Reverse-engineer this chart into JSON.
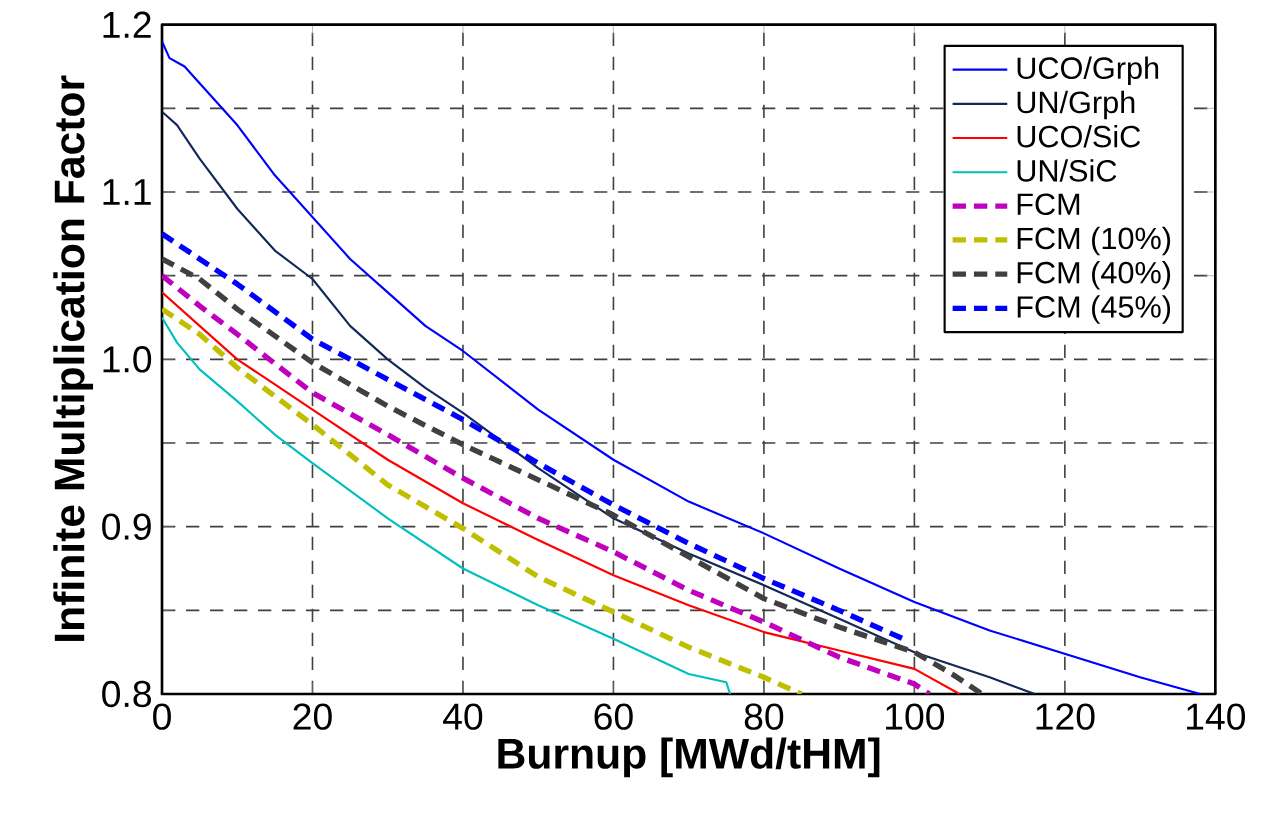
{
  "chart_data": {
    "type": "line",
    "xlabel": "Burnup [MWd/tHM]",
    "ylabel": "Infinite Multiplication Factor",
    "xlim": [
      0,
      140
    ],
    "ylim": [
      0.8,
      1.2
    ],
    "xticks": [
      0,
      20,
      40,
      60,
      80,
      100,
      120,
      140
    ],
    "yticks": [
      0.8,
      {
        "value": 0.85,
        "label": null
      },
      0.9,
      {
        "value": 0.95,
        "label": null
      },
      {
        "value": 1.0,
        "label": "1.0"
      },
      {
        "value": 1.05,
        "label": null
      },
      1.1,
      {
        "value": 1.15,
        "label": null
      },
      1.2
    ],
    "grid": true,
    "legend": "top right",
    "marker": "none",
    "series": [
      {
        "name": "UCO/Grph",
        "color": "#0000ff",
        "line_style": "solid",
        "x": [
          0,
          1,
          3,
          5,
          10,
          15,
          20,
          25,
          30,
          35,
          40,
          50,
          60,
          70,
          80,
          90,
          100,
          110,
          120,
          130,
          138
        ],
        "values": [
          1.19,
          1.18,
          1.175,
          1.165,
          1.14,
          1.11,
          1.085,
          1.06,
          1.04,
          1.02,
          1.005,
          0.97,
          0.94,
          0.915,
          0.896,
          0.875,
          0.855,
          0.838,
          0.824,
          0.81,
          0.8
        ]
      },
      {
        "name": "UN/Grph",
        "color": "#13285a",
        "line_style": "solid",
        "x": [
          0,
          2,
          5,
          10,
          15,
          20,
          25,
          30,
          35,
          40,
          50,
          60,
          70,
          80,
          90,
          100,
          110,
          116
        ],
        "values": [
          1.148,
          1.14,
          1.12,
          1.09,
          1.065,
          1.048,
          1.02,
          1.0,
          0.983,
          0.968,
          0.935,
          0.905,
          0.884,
          0.865,
          0.845,
          0.825,
          0.81,
          0.8
        ]
      },
      {
        "name": "UCO/SiC",
        "color": "#ff0000",
        "line_style": "solid",
        "x": [
          0,
          5,
          10,
          15,
          20,
          30,
          40,
          50,
          60,
          70,
          80,
          90,
          100,
          106
        ],
        "values": [
          1.04,
          1.02,
          1.0,
          0.985,
          0.97,
          0.94,
          0.914,
          0.892,
          0.871,
          0.853,
          0.837,
          0.826,
          0.815,
          0.8
        ]
      },
      {
        "name": "UN/SiC",
        "color": "#00bfbf",
        "line_style": "solid",
        "x": [
          0,
          2,
          5,
          10,
          15,
          20,
          30,
          40,
          50,
          60,
          70,
          75,
          75.5
        ],
        "values": [
          1.025,
          1.01,
          0.994,
          0.975,
          0.955,
          0.938,
          0.905,
          0.875,
          0.853,
          0.833,
          0.812,
          0.807,
          0.8
        ]
      },
      {
        "name": "FCM",
        "color": "#bf00bf",
        "line_style": "dashed",
        "x": [
          0,
          5,
          10,
          20,
          30,
          40,
          50,
          60,
          70,
          80,
          90,
          100,
          102
        ],
        "values": [
          1.05,
          1.032,
          1.015,
          0.98,
          0.955,
          0.929,
          0.905,
          0.885,
          0.862,
          0.843,
          0.822,
          0.806,
          0.8
        ]
      },
      {
        "name": "FCM (10%)",
        "color": "#bfbf00",
        "line_style": "dashed",
        "x": [
          0,
          5,
          10,
          20,
          30,
          40,
          50,
          60,
          70,
          80,
          85
        ],
        "values": [
          1.03,
          1.015,
          0.995,
          0.961,
          0.925,
          0.899,
          0.87,
          0.849,
          0.828,
          0.81,
          0.8
        ]
      },
      {
        "name": "FCM (40%)",
        "color": "#404040",
        "line_style": "dashed",
        "x": [
          0,
          5,
          10,
          20,
          30,
          40,
          50,
          60,
          70,
          80,
          90,
          100,
          105,
          109
        ],
        "values": [
          1.06,
          1.048,
          1.03,
          0.998,
          0.972,
          0.949,
          0.928,
          0.907,
          0.882,
          0.857,
          0.84,
          0.825,
          0.812,
          0.8
        ]
      },
      {
        "name": "FCM (45%)",
        "color": "#0000ff",
        "line_style": "dashed",
        "x": [
          0,
          5,
          10,
          20,
          30,
          40,
          50,
          60,
          70,
          80,
          90,
          98.5
        ],
        "values": [
          1.075,
          1.06,
          1.045,
          1.012,
          0.988,
          0.964,
          0.938,
          0.913,
          0.89,
          0.869,
          0.85,
          0.833
        ]
      }
    ]
  }
}
